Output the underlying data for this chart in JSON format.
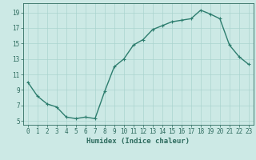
{
  "x": [
    0,
    1,
    2,
    3,
    4,
    5,
    6,
    7,
    8,
    9,
    10,
    11,
    12,
    13,
    14,
    15,
    16,
    17,
    18,
    19,
    20,
    21,
    22,
    23
  ],
  "y": [
    10.0,
    8.2,
    7.2,
    6.8,
    5.5,
    5.3,
    5.5,
    5.3,
    8.8,
    12.0,
    13.0,
    14.8,
    15.5,
    16.8,
    17.3,
    17.8,
    18.0,
    18.2,
    19.3,
    18.8,
    18.2,
    14.8,
    13.3,
    12.3
  ],
  "line_color": "#2d7d6e",
  "marker": "+",
  "marker_size": 3,
  "line_width": 1.0,
  "bg_color": "#cce9e5",
  "grid_color": "#aad4cf",
  "xlabel": "Humidex (Indice chaleur)",
  "xlim": [
    -0.5,
    23.5
  ],
  "ylim": [
    4.5,
    20.2
  ],
  "yticks": [
    5,
    7,
    9,
    11,
    13,
    15,
    17,
    19
  ],
  "xticks": [
    0,
    1,
    2,
    3,
    4,
    5,
    6,
    7,
    8,
    9,
    10,
    11,
    12,
    13,
    14,
    15,
    16,
    17,
    18,
    19,
    20,
    21,
    22,
    23
  ],
  "tick_color": "#2d6b5e",
  "label_fontsize": 6.5,
  "tick_fontsize": 5.5
}
